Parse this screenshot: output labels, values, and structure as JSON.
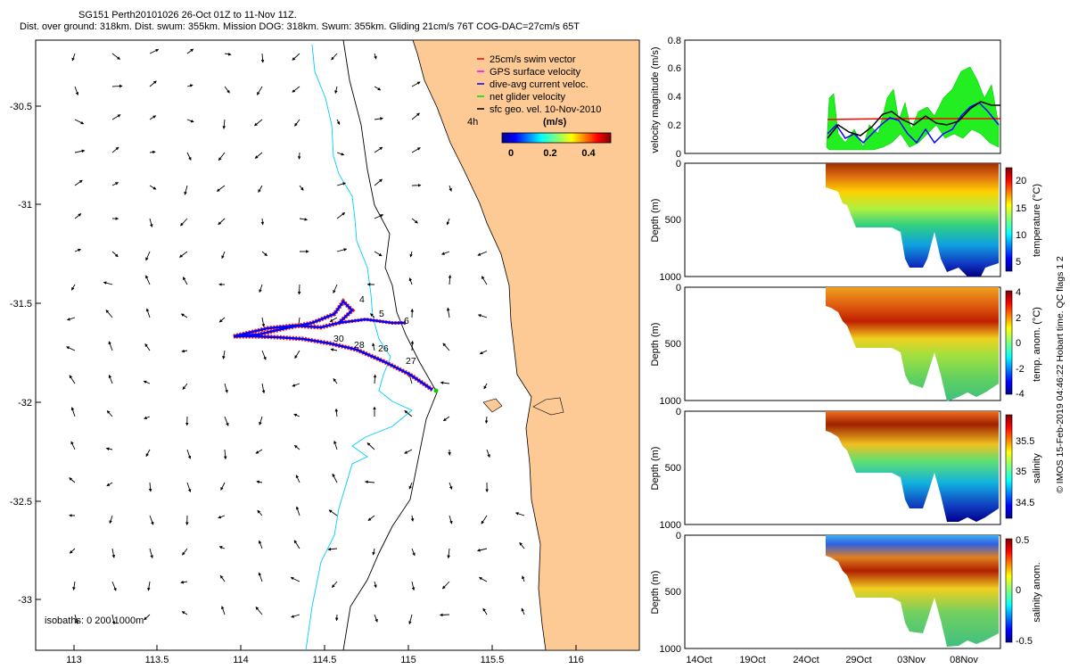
{
  "header": {
    "line1": "SG151 Perth20101026 26-Oct 01Z to 11-Nov 11Z.",
    "line2": "Dist. over ground: 318km. Dist. swum: 355km. Mission DOG: 318km. Swum: 355km. Gliding 21cm/s 76T COG-DAC=27cm/s 65T"
  },
  "map": {
    "x_ticks": [
      "113",
      "113.5",
      "114",
      "114.5",
      "115",
      "115.5",
      "116"
    ],
    "y_ticks": [
      "-30.5",
      "-31",
      "-31.5",
      "-32",
      "-32.5",
      "-33"
    ],
    "legend": [
      {
        "label": "25cm/s swim vector",
        "color": "#ff0000"
      },
      {
        "label": "GPS surface velocity",
        "color": "#ff00ff"
      },
      {
        "label": "dive-avg current veloc.",
        "color": "#0000ff"
      },
      {
        "label": "net glider velocity",
        "color": "#00e000"
      },
      {
        "label": "sfc geo. vel. 10-Nov-2010",
        "color": "#000000"
      }
    ],
    "colorbar_label": "4h",
    "colorbar_units": "(m/s)",
    "colorbar_ticks": [
      "0",
      "0.2",
      "0.4"
    ],
    "isobaths_label": "isobaths: 0   200  1000m",
    "track_day_labels": [
      "4",
      "5",
      "6",
      "30",
      "28",
      "26",
      "27"
    ],
    "colors": {
      "land": "#fdc995",
      "isobath_200": "#000000",
      "isobath_1000": "#00ccff"
    }
  },
  "panels": {
    "velocity": {
      "ylabel": "velocity magnitude (m/s)",
      "y_ticks": [
        "0",
        "0.2",
        "0.4",
        "0.6",
        "0.8"
      ]
    },
    "depth_label": "Depth (m)",
    "depth_ticks": [
      "0",
      "500",
      "1000"
    ],
    "sections": [
      {
        "cbar_label": "temperature (°C)",
        "cbar_ticks": [
          "20",
          "15",
          "10",
          "5"
        ]
      },
      {
        "cbar_label": "temp. anom. (°C)",
        "cbar_ticks": [
          "4",
          "2",
          "0",
          "-2",
          "-4"
        ]
      },
      {
        "cbar_label": "salinity",
        "cbar_ticks": [
          "35.5",
          "35",
          "34.5"
        ]
      },
      {
        "cbar_label": "salinity anom.",
        "cbar_ticks": [
          "0.5",
          "0",
          "-0.5"
        ]
      }
    ],
    "time_ticks": [
      "14Oct",
      "19Oct",
      "24Oct",
      "29Oct",
      "03Nov",
      "08Nov"
    ],
    "footer": "© IMOS 15-Feb-2019 04:46:22 Hobart time. QC flags 1  2"
  }
}
